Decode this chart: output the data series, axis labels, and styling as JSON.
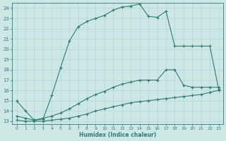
{
  "xlabel": "Humidex (Indice chaleur)",
  "ylabel": "",
  "xlim": [
    -0.5,
    23.5
  ],
  "ylim": [
    12.7,
    24.5
  ],
  "xticks": [
    0,
    1,
    2,
    3,
    4,
    5,
    6,
    7,
    8,
    9,
    10,
    11,
    12,
    13,
    14,
    15,
    16,
    17,
    18,
    19,
    20,
    21,
    22,
    23
  ],
  "yticks": [
    13,
    14,
    15,
    16,
    17,
    18,
    19,
    20,
    21,
    22,
    23,
    24
  ],
  "bg_color": "#cde8e4",
  "grid_color": "#b0d8d4",
  "line_color": "#2e7d6e",
  "line1_x": [
    0,
    1,
    2,
    3,
    4,
    5,
    6,
    7,
    8,
    9,
    10,
    11,
    12,
    13,
    14,
    15,
    16,
    17,
    18,
    19,
    20,
    21,
    22,
    23
  ],
  "line1_y": [
    15.0,
    14.0,
    13.1,
    13.2,
    15.5,
    18.2,
    20.8,
    22.2,
    22.7,
    23.0,
    23.3,
    23.8,
    24.1,
    24.2,
    24.4,
    23.2,
    23.1,
    23.7,
    20.3,
    20.3,
    20.3,
    20.3,
    20.3,
    16.1
  ],
  "line2_x": [
    0,
    1,
    2,
    3,
    4,
    5,
    6,
    7,
    8,
    9,
    10,
    11,
    12,
    13,
    14,
    15,
    16,
    17,
    18,
    19,
    20,
    21,
    22,
    23
  ],
  "line2_y": [
    13.5,
    13.3,
    13.1,
    13.3,
    13.5,
    13.8,
    14.2,
    14.7,
    15.2,
    15.6,
    15.9,
    16.3,
    16.6,
    16.8,
    17.0,
    17.0,
    17.0,
    18.0,
    18.0,
    16.5,
    16.3,
    16.3,
    16.3,
    16.3
  ],
  "line3_x": [
    0,
    1,
    2,
    3,
    4,
    5,
    6,
    7,
    8,
    9,
    10,
    11,
    12,
    13,
    14,
    15,
    16,
    17,
    18,
    19,
    20,
    21,
    22,
    23
  ],
  "line3_y": [
    13.1,
    13.0,
    13.0,
    13.0,
    13.1,
    13.2,
    13.3,
    13.5,
    13.7,
    14.0,
    14.2,
    14.4,
    14.6,
    14.8,
    14.9,
    15.0,
    15.1,
    15.2,
    15.3,
    15.4,
    15.5,
    15.6,
    15.8,
    16.0
  ]
}
